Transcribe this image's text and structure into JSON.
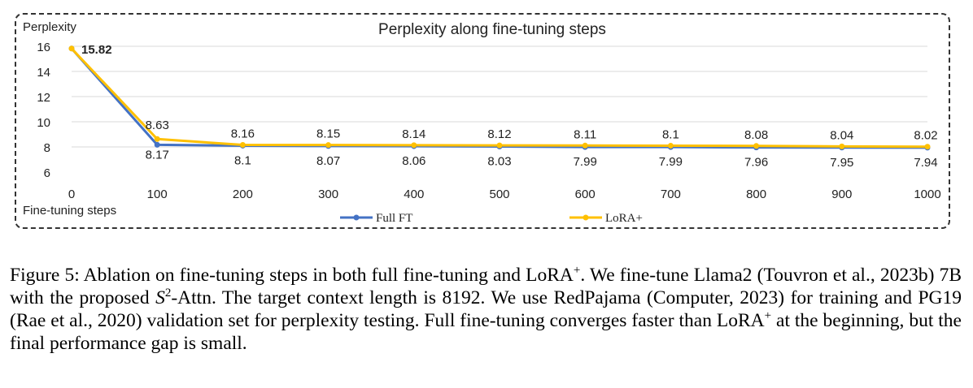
{
  "chart_data": {
    "type": "line",
    "title": "Perplexity along fine-tuning steps",
    "xlabel": "Fine-tuning steps",
    "ylabel": "Perplexity",
    "x": [
      0,
      100,
      200,
      300,
      400,
      500,
      600,
      700,
      800,
      900,
      1000
    ],
    "yticks": [
      6,
      8,
      10,
      12,
      14,
      16
    ],
    "ylim": [
      6,
      16
    ],
    "grid": true,
    "legend_position": "bottom",
    "series": [
      {
        "name": "Full FT",
        "color": "#4472c4",
        "values": [
          15.82,
          8.17,
          8.1,
          8.07,
          8.06,
          8.03,
          7.99,
          7.99,
          7.96,
          7.95,
          7.94
        ],
        "labels": [
          "",
          "8.17",
          "8.1",
          "8.07",
          "8.06",
          "8.03",
          "7.99",
          "7.99",
          "7.96",
          "7.95",
          "7.94"
        ]
      },
      {
        "name": "LoRA+",
        "color": "#ffc000",
        "values": [
          15.82,
          8.63,
          8.16,
          8.15,
          8.14,
          8.12,
          8.11,
          8.1,
          8.08,
          8.04,
          8.02
        ],
        "labels": [
          "15.82",
          "8.63",
          "8.16",
          "8.15",
          "8.14",
          "8.12",
          "8.11",
          "8.1",
          "8.08",
          "8.04",
          "8.02"
        ]
      }
    ]
  },
  "caption": {
    "prefix": "Figure 5: Ablation on fine-tuning steps in both full fine-tuning and LoRA",
    "sup1": "+",
    "part2": ". We fine-tune Llama2 (Touvron et al., 2023b) 7B with the proposed ",
    "math_s": "S",
    "math_sup": "2",
    "part3": "-Attn. The target context length is 8192. We use RedPajama (Computer, 2023) for training and PG19 (Rae et al., 2020) validation set for perplexity testing. Full fine-tuning converges faster than LoRA",
    "sup2": "+",
    "part4": " at the beginning, but the final performance gap is small."
  }
}
